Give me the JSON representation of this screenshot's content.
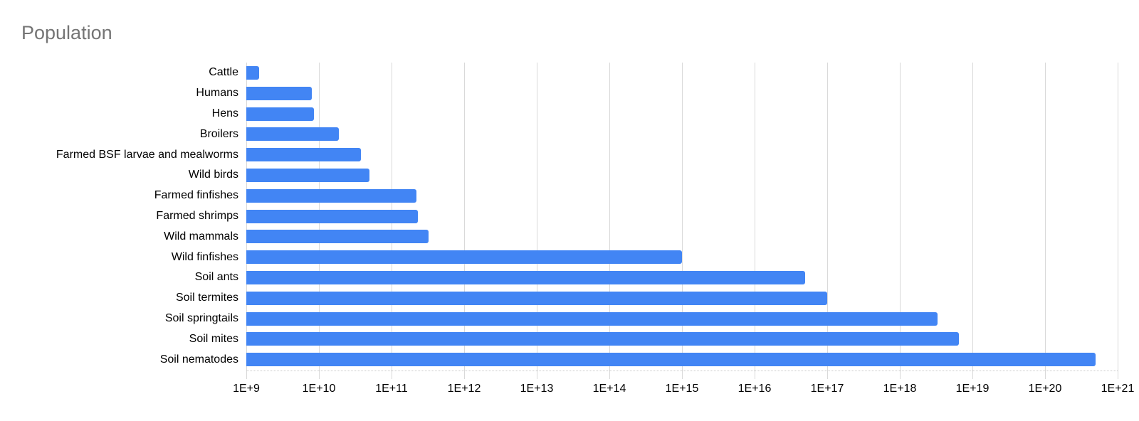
{
  "chart_data": {
    "type": "bar",
    "orientation": "horizontal",
    "title": "Population",
    "xlabel": "",
    "ylabel": "",
    "x_scale": "log",
    "xlim": [
      1000000000.0,
      1e+21
    ],
    "grid": true,
    "legend_position": "none",
    "x_tick_labels": [
      "1E+9",
      "1E+10",
      "1E+11",
      "1E+12",
      "1E+13",
      "1E+14",
      "1E+15",
      "1E+16",
      "1E+17",
      "1E+18",
      "1E+19",
      "1E+20",
      "1E+21"
    ],
    "x_tick_values": [
      1000000000.0,
      10000000000.0,
      100000000000.0,
      1000000000000.0,
      10000000000000.0,
      100000000000000.0,
      1000000000000000.0,
      1e+16,
      1e+17,
      1e+18,
      1e+19,
      1e+20,
      1e+21
    ],
    "categories": [
      "Cattle",
      "Humans",
      "Hens",
      "Broilers",
      "Farmed BSF larvae and mealworms",
      "Wild birds",
      "Farmed finfishes",
      "Farmed shrimps",
      "Wild mammals",
      "Wild finfishes",
      "Soil ants",
      "Soil termites",
      "Soil springtails",
      "Soil mites",
      "Soil nematodes"
    ],
    "values": [
      1500000000.0,
      8000000000.0,
      8500000000.0,
      19000000000.0,
      38000000000.0,
      50000000000.0,
      220000000000.0,
      230000000000.0,
      320000000000.0,
      1000000000000000.0,
      5e+16,
      1e+17,
      3.3e+18,
      6.5e+18,
      5e+20
    ]
  },
  "colors": {
    "bar": "#4285f4",
    "gridline": "#d9d9d9",
    "baseline_dotted": "#cccccc",
    "title_text": "#757575",
    "axis_text": "#000000",
    "background": "#ffffff"
  }
}
